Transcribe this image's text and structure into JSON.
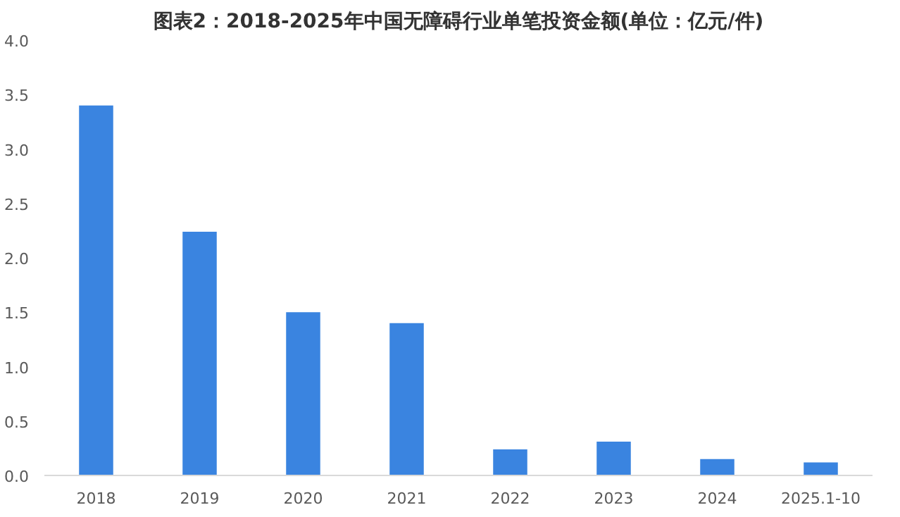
{
  "chart_data": {
    "type": "bar",
    "title": "图表2：2018-2025年中国无障碍行业单笔投资金额(单位：亿元/件)",
    "categories": [
      "2018",
      "2019",
      "2020",
      "2021",
      "2022",
      "2023",
      "2024",
      "2025.1-10"
    ],
    "values": [
      3.4,
      2.24,
      1.5,
      1.4,
      0.24,
      0.31,
      0.15,
      0.12
    ],
    "color": "#3a84e0",
    "ylim": [
      0,
      4
    ],
    "yticks": [
      {
        "value": 0,
        "label": "0.0"
      },
      {
        "value": 0.5,
        "label": "0.5"
      },
      {
        "value": 1,
        "label": "1.0"
      },
      {
        "value": 1.5,
        "label": "1.5"
      },
      {
        "value": 2,
        "label": "2.0"
      },
      {
        "value": 2.5,
        "label": "2.5"
      },
      {
        "value": 3,
        "label": "3.0"
      },
      {
        "value": 3.5,
        "label": "3.5"
      },
      {
        "value": 4,
        "label": "4.0"
      }
    ],
    "grid": false
  }
}
